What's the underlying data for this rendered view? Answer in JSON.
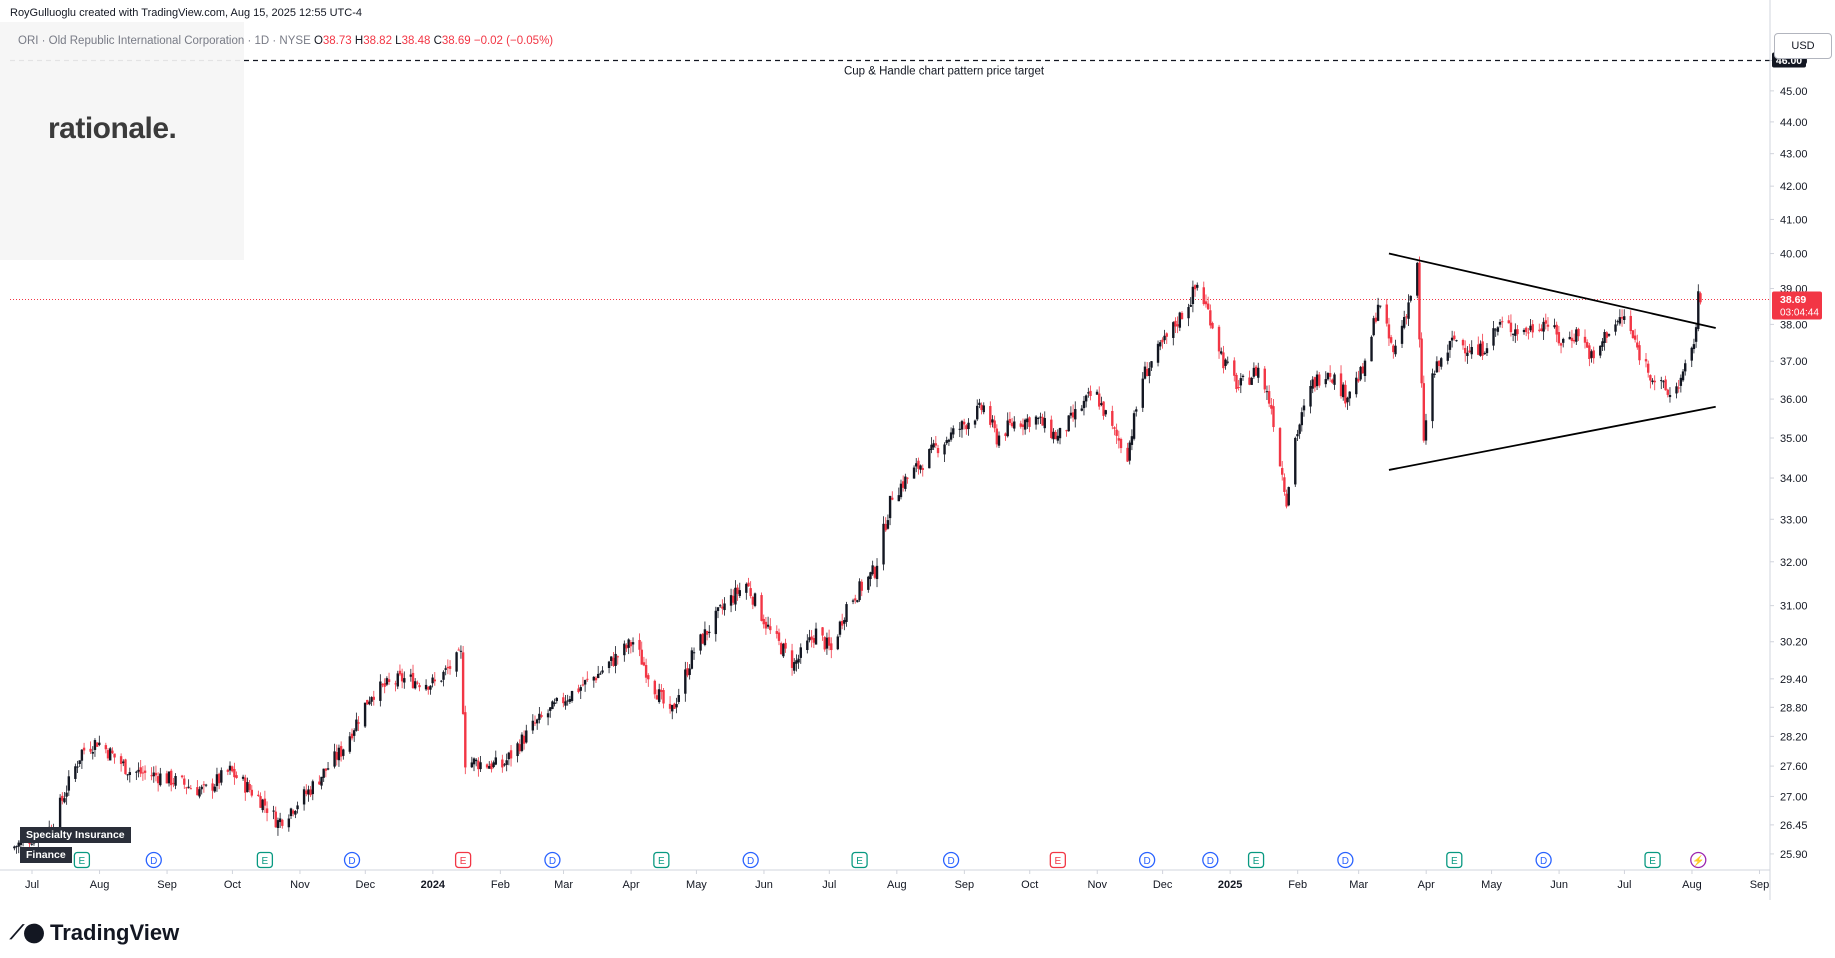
{
  "header": {
    "attribution": "RoyGulluoglu created with TradingView.com, Aug 15, 2025 12:55 UTC-4"
  },
  "legend": {
    "symbol": "ORI · Old Republic International Corporation · 1D · NYSE",
    "open_label": "O",
    "open": "38.73",
    "high_label": "H",
    "high": "38.82",
    "low_label": "L",
    "low": "38.48",
    "close_label": "C",
    "close": "38.69",
    "change": "−0.02 (−0.05%)"
  },
  "logo": {
    "text": "rationale."
  },
  "currency_button": "USD",
  "sector_tags": [
    "Specialty Insurance",
    "Finance"
  ],
  "branding": {
    "text": "TradingView"
  },
  "colors": {
    "up": "#131722",
    "down": "#f23645",
    "price_line": "#f23645",
    "axis_text": "#131722",
    "target_badge": "#131722"
  },
  "chart_data": {
    "type": "candlestick",
    "symbol": "ORI",
    "timeframe": "1D",
    "y_scale": "log",
    "ylim": [
      25.6,
      47.3
    ],
    "y_ticks": [
      "46.00",
      "45.00",
      "44.00",
      "43.00",
      "42.00",
      "41.00",
      "40.00",
      "39.00",
      "38.00",
      "37.00",
      "36.00",
      "35.00",
      "34.00",
      "33.00",
      "32.00",
      "31.00",
      "30.20",
      "29.40",
      "28.80",
      "28.20",
      "27.60",
      "27.00",
      "26.45",
      "25.90"
    ],
    "x_ticks": [
      "Jul",
      "Aug",
      "Sep",
      "Oct",
      "Nov",
      "Dec",
      "2024",
      "Feb",
      "Mar",
      "Apr",
      "May",
      "Jun",
      "Jul",
      "Aug",
      "Sep",
      "Oct",
      "Nov",
      "Dec",
      "2025",
      "Feb",
      "Mar",
      "Apr",
      "May",
      "Jun",
      "Jul",
      "Aug",
      "Sep"
    ],
    "x_range": [
      "2023-07-01",
      "2025-09-15"
    ],
    "last_price": {
      "value": "38.69",
      "countdown": "03:04:44"
    },
    "price_target": {
      "value": "46.00",
      "label": "Cup & Handle chart pattern price target"
    },
    "trendlines": [
      {
        "name": "triangle-upper",
        "from": [
          "2025-03-25",
          40.0
        ],
        "to": [
          "2025-08-22",
          37.9
        ]
      },
      {
        "name": "triangle-lower",
        "from": [
          "2025-03-25",
          34.2
        ],
        "to": [
          "2025-08-22",
          35.8
        ]
      }
    ],
    "events": [
      {
        "date": "2023-08-03",
        "kind": "E"
      },
      {
        "date": "2023-09-05",
        "kind": "D"
      },
      {
        "date": "2023-10-26",
        "kind": "E"
      },
      {
        "date": "2023-12-05",
        "kind": "D"
      },
      {
        "date": "2024-01-25",
        "kind": "E",
        "negative": true
      },
      {
        "date": "2024-03-06",
        "kind": "D"
      },
      {
        "date": "2024-04-25",
        "kind": "E"
      },
      {
        "date": "2024-06-05",
        "kind": "D"
      },
      {
        "date": "2024-07-25",
        "kind": "E"
      },
      {
        "date": "2024-09-05",
        "kind": "D"
      },
      {
        "date": "2024-10-24",
        "kind": "E",
        "negative": true
      },
      {
        "date": "2024-12-04",
        "kind": "D"
      },
      {
        "date": "2025-01-02",
        "kind": "D"
      },
      {
        "date": "2025-01-23",
        "kind": "E"
      },
      {
        "date": "2025-03-05",
        "kind": "D"
      },
      {
        "date": "2025-04-24",
        "kind": "E"
      },
      {
        "date": "2025-06-04",
        "kind": "D"
      },
      {
        "date": "2025-07-24",
        "kind": "E"
      },
      {
        "date": "2025-08-14",
        "kind": "S"
      }
    ],
    "price_path": [
      [
        "2023-07-01",
        26.0
      ],
      [
        "2023-07-20",
        26.4
      ],
      [
        "2023-08-03",
        27.9
      ],
      [
        "2023-08-10",
        28.1
      ],
      [
        "2023-08-25",
        27.5
      ],
      [
        "2023-09-08",
        27.4
      ],
      [
        "2023-09-28",
        27.1
      ],
      [
        "2023-10-10",
        27.5
      ],
      [
        "2023-10-25",
        26.9
      ],
      [
        "2023-11-01",
        26.5
      ],
      [
        "2023-11-15",
        27.1
      ],
      [
        "2023-11-30",
        27.9
      ],
      [
        "2023-12-14",
        29.1
      ],
      [
        "2023-12-28",
        29.4
      ],
      [
        "2024-01-12",
        29.3
      ],
      [
        "2024-01-24",
        29.9
      ],
      [
        "2024-01-26",
        27.7
      ],
      [
        "2024-02-12",
        27.6
      ],
      [
        "2024-02-26",
        28.4
      ],
      [
        "2024-03-12",
        29.0
      ],
      [
        "2024-03-27",
        29.5
      ],
      [
        "2024-04-12",
        30.2
      ],
      [
        "2024-04-20",
        29.4
      ],
      [
        "2024-04-29",
        28.6
      ],
      [
        "2024-05-10",
        30.0
      ],
      [
        "2024-05-24",
        31.0
      ],
      [
        "2024-06-03",
        31.5
      ],
      [
        "2024-06-14",
        30.4
      ],
      [
        "2024-06-25",
        29.7
      ],
      [
        "2024-07-05",
        30.4
      ],
      [
        "2024-07-12",
        30.0
      ],
      [
        "2024-07-19",
        31.0
      ],
      [
        "2024-08-01",
        31.8
      ],
      [
        "2024-08-09",
        33.6
      ],
      [
        "2024-08-16",
        34.0
      ],
      [
        "2024-08-30",
        34.8
      ],
      [
        "2024-09-10",
        35.3
      ],
      [
        "2024-09-20",
        35.8
      ],
      [
        "2024-09-26",
        35.0
      ],
      [
        "2024-10-04",
        35.4
      ],
      [
        "2024-10-14",
        35.5
      ],
      [
        "2024-10-24",
        35.0
      ],
      [
        "2024-11-01",
        35.6
      ],
      [
        "2024-11-10",
        36.2
      ],
      [
        "2024-11-18",
        35.2
      ],
      [
        "2024-11-25",
        34.6
      ],
      [
        "2024-12-02",
        36.6
      ],
      [
        "2024-12-15",
        37.8
      ],
      [
        "2024-12-23",
        38.6
      ],
      [
        "2024-12-27",
        39.1
      ],
      [
        "2025-01-02",
        38.2
      ],
      [
        "2025-01-08",
        37.0
      ],
      [
        "2025-01-15",
        36.3
      ],
      [
        "2025-01-24",
        36.8
      ],
      [
        "2025-01-30",
        35.8
      ],
      [
        "2025-02-03",
        34.4
      ],
      [
        "2025-02-06",
        33.5
      ],
      [
        "2025-02-10",
        35.0
      ],
      [
        "2025-02-18",
        36.4
      ],
      [
        "2025-02-25",
        36.8
      ],
      [
        "2025-03-05",
        36.1
      ],
      [
        "2025-03-14",
        36.8
      ],
      [
        "2025-03-20",
        38.6
      ],
      [
        "2025-03-27",
        37.2
      ],
      [
        "2025-04-03",
        38.6
      ],
      [
        "2025-04-07",
        39.6
      ],
      [
        "2025-04-08",
        37.5
      ],
      [
        "2025-04-10",
        35.0
      ],
      [
        "2025-04-14",
        36.6
      ],
      [
        "2025-04-24",
        37.6
      ],
      [
        "2025-05-05",
        37.2
      ],
      [
        "2025-05-15",
        38.0
      ],
      [
        "2025-05-26",
        37.8
      ],
      [
        "2025-06-05",
        38.1
      ],
      [
        "2025-06-12",
        37.5
      ],
      [
        "2025-06-20",
        37.8
      ],
      [
        "2025-06-27",
        37.0
      ],
      [
        "2025-07-03",
        37.8
      ],
      [
        "2025-07-11",
        38.2
      ],
      [
        "2025-07-18",
        37.2
      ],
      [
        "2025-07-25",
        36.5
      ],
      [
        "2025-08-01",
        36.1
      ],
      [
        "2025-08-07",
        36.6
      ],
      [
        "2025-08-11",
        37.2
      ],
      [
        "2025-08-13",
        38.0
      ],
      [
        "2025-08-14",
        38.7
      ],
      [
        "2025-08-15",
        38.69
      ]
    ]
  }
}
